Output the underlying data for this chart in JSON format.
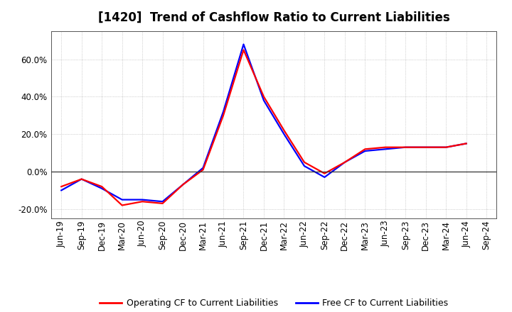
{
  "title": "[1420]  Trend of Cashflow Ratio to Current Liabilities",
  "x_labels": [
    "Jun-19",
    "Sep-19",
    "Dec-19",
    "Mar-20",
    "Jun-20",
    "Sep-20",
    "Dec-20",
    "Mar-21",
    "Jun-21",
    "Sep-21",
    "Dec-21",
    "Mar-22",
    "Jun-22",
    "Sep-22",
    "Dec-22",
    "Mar-23",
    "Jun-23",
    "Sep-23",
    "Dec-23",
    "Mar-24",
    "Jun-24",
    "Sep-24"
  ],
  "operating_cf": [
    -0.08,
    -0.04,
    -0.08,
    -0.18,
    -0.16,
    -0.17,
    -0.07,
    0.01,
    0.3,
    0.65,
    0.4,
    0.22,
    0.05,
    -0.01,
    0.05,
    0.12,
    0.13,
    0.13,
    0.13,
    0.13,
    0.15,
    null
  ],
  "free_cf": [
    -0.1,
    -0.04,
    -0.09,
    -0.15,
    -0.15,
    -0.16,
    -0.07,
    0.02,
    0.32,
    0.68,
    0.38,
    0.2,
    0.03,
    -0.03,
    0.05,
    0.11,
    0.12,
    0.13,
    0.13,
    0.13,
    0.15,
    null
  ],
  "operating_color": "#ff0000",
  "free_color": "#0000ff",
  "ylim": [
    -0.25,
    0.75
  ],
  "yticks": [
    -0.2,
    0.0,
    0.2,
    0.4,
    0.6
  ],
  "ytick_labels": [
    "-20.0%",
    "0.0%",
    "20.0%",
    "40.0%",
    "60.0%"
  ],
  "legend_operating": "Operating CF to Current Liabilities",
  "legend_free": "Free CF to Current Liabilities",
  "background_color": "#ffffff",
  "grid_color": "#999999",
  "title_fontsize": 12,
  "axis_fontsize": 8.5,
  "legend_fontsize": 9,
  "line_width": 1.6
}
